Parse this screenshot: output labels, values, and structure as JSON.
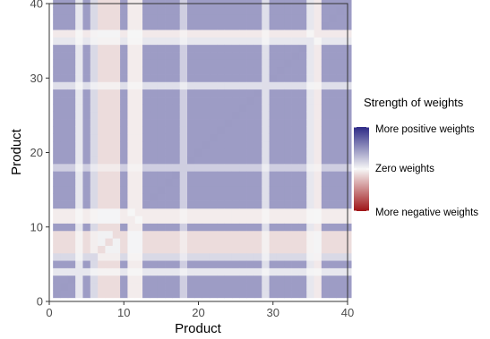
{
  "chart_data": {
    "type": "heatmap",
    "xlabel": "Product",
    "ylabel": "Product",
    "xlim": [
      0,
      40
    ],
    "ylim": [
      0,
      40
    ],
    "x_ticks": [
      0,
      10,
      20,
      30,
      40
    ],
    "y_ticks": [
      0,
      10,
      20,
      30,
      40
    ],
    "n_products": 40,
    "value_range": [
      -1,
      1
    ],
    "colors": {
      "positive": "#2d2a86",
      "zero": "#f7f7f7",
      "negative": "#9e1316"
    },
    "product_strength": [
      0.45,
      0.45,
      0.45,
      0.08,
      0.45,
      0.15,
      -0.12,
      -0.12,
      -0.12,
      0.45,
      -0.05,
      -0.05,
      0.45,
      0.45,
      0.45,
      0.45,
      0.45,
      0.2,
      0.45,
      0.45,
      0.45,
      0.45,
      0.45,
      0.45,
      0.45,
      0.45,
      0.45,
      0.45,
      0.12,
      0.45,
      0.45,
      0.45,
      0.45,
      0.45,
      0.08,
      -0.06,
      0.45,
      0.45,
      0.45,
      0.45
    ],
    "legend": {
      "title": "Strength of weights",
      "labels": [
        "More positive weights",
        "Zero weights",
        "More negative weights"
      ],
      "placement": "right"
    }
  }
}
